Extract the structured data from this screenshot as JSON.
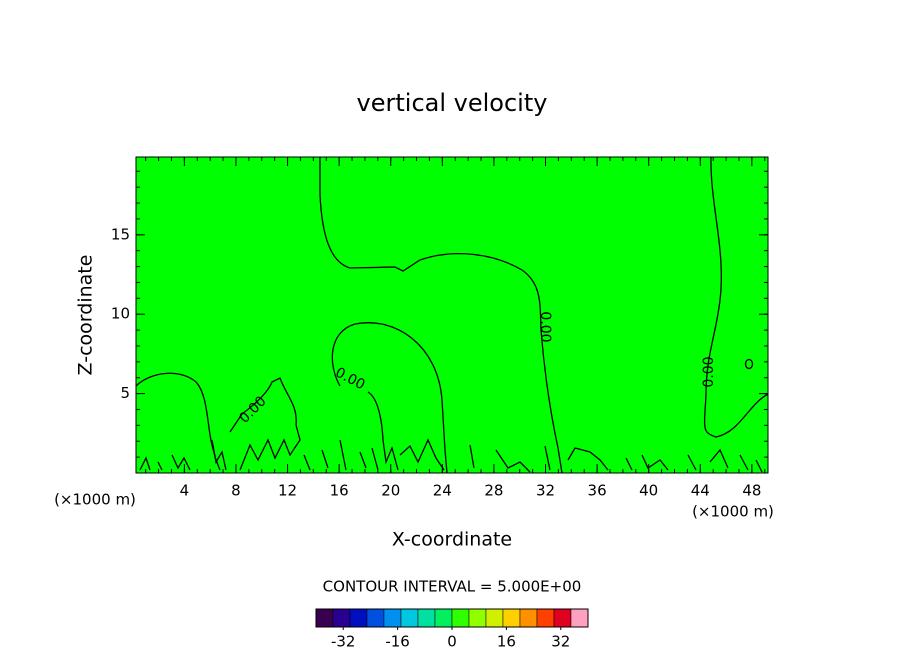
{
  "chart_data": {
    "type": "contour",
    "title": "vertical velocity",
    "x_label": "X-coordinate",
    "y_label": "Z-coordinate",
    "x_unit_label": "(×1000 m)",
    "x_unit_label_right": "(×1000 m)",
    "xlim": [
      0.25,
      49.25
    ],
    "ylim": [
      0,
      19.9
    ],
    "xticks": [
      4,
      8,
      12,
      16,
      20,
      24,
      28,
      32,
      36,
      40,
      44,
      48
    ],
    "yticks": [
      5,
      10,
      15
    ],
    "field_color": "#00ff00",
    "contour_levels": [
      {
        "value": 0,
        "label": "0.00"
      }
    ],
    "contour_interval_label": "CONTOUR INTERVAL = 5.000E+00",
    "colorbar": {
      "clim": [
        -40,
        40
      ],
      "ticks": [
        -32,
        -16,
        0,
        16,
        32
      ],
      "colors": [
        "#3a0050",
        "#2a0090",
        "#0010c0",
        "#0050e0",
        "#0090f0",
        "#00c8e0",
        "#00e0a0",
        "#00f060",
        "#30ff00",
        "#90ff00",
        "#d0f000",
        "#ffd000",
        "#ff9000",
        "#ff4000",
        "#e00020",
        "#ffa0c0"
      ]
    }
  }
}
